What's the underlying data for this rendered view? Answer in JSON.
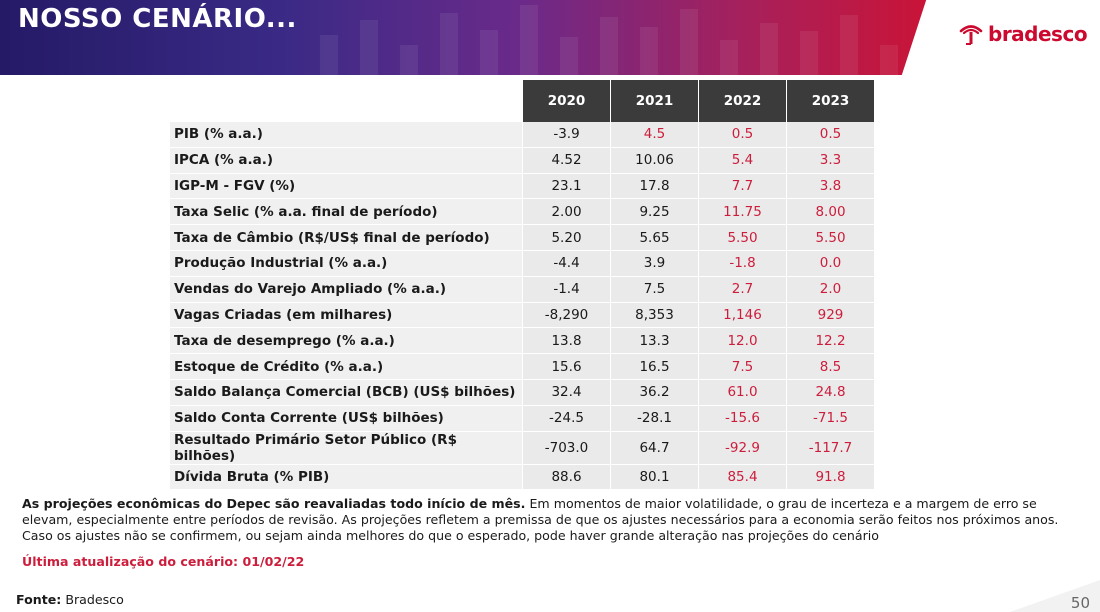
{
  "header": {
    "title": "NOSSO CENÁRIO...",
    "logo_text": "bradesco",
    "brand_color": "#cc092f"
  },
  "table": {
    "years": [
      "2020",
      "2021",
      "2022",
      "2023"
    ],
    "projection_color": "#cc1e3c",
    "rows": [
      {
        "label": "PIB (% a.a.)",
        "values": [
          "-3.9",
          "4.5",
          "0.5",
          "0.5"
        ],
        "proj_from": 1
      },
      {
        "label": "IPCA (% a.a.)",
        "values": [
          "4.52",
          "10.06",
          "5.4",
          "3.3"
        ],
        "proj_from": 2
      },
      {
        "label": "IGP-M - FGV (%)",
        "values": [
          "23.1",
          "17.8",
          "7.7",
          "3.8"
        ],
        "proj_from": 2
      },
      {
        "label": "Taxa Selic (% a.a. final de período)",
        "values": [
          "2.00",
          "9.25",
          "11.75",
          "8.00"
        ],
        "proj_from": 2
      },
      {
        "label": "Taxa de Câmbio (R$/US$ final de período)",
        "values": [
          "5.20",
          "5.65",
          "5.50",
          "5.50"
        ],
        "proj_from": 2
      },
      {
        "label": "Produção Industrial (% a.a.)",
        "values": [
          "-4.4",
          "3.9",
          "-1.8",
          "0.0"
        ],
        "proj_from": 2
      },
      {
        "label": "Vendas do Varejo Ampliado (% a.a.)",
        "values": [
          "-1.4",
          "7.5",
          "2.7",
          "2.0"
        ],
        "proj_from": 2
      },
      {
        "label": "Vagas Criadas (em milhares)",
        "values": [
          "-8,290",
          "8,353",
          "1,146",
          "929"
        ],
        "proj_from": 2
      },
      {
        "label": "Taxa de desemprego (% a.a.)",
        "values": [
          "13.8",
          "13.3",
          "12.0",
          "12.2"
        ],
        "proj_from": 2
      },
      {
        "label": "Estoque de Crédito (% a.a.)",
        "values": [
          "15.6",
          "16.5",
          "7.5",
          "8.5"
        ],
        "proj_from": 2
      },
      {
        "label": "Saldo Balança Comercial (BCB) (US$ bilhões)",
        "values": [
          "32.4",
          "36.2",
          "61.0",
          "24.8"
        ],
        "proj_from": 2
      },
      {
        "label": "Saldo Conta Corrente (US$ bilhões)",
        "values": [
          "-24.5",
          "-28.1",
          "-15.6",
          "-71.5"
        ],
        "proj_from": 2
      },
      {
        "label": "Resultado Primário Setor Público (R$ bilhões)",
        "values": [
          "-703.0",
          "64.7",
          "-92.9",
          "-117.7"
        ],
        "proj_from": 2
      },
      {
        "label": "Dívida Bruta (% PIB)",
        "values": [
          "88.6",
          "80.1",
          "85.4",
          "91.8"
        ],
        "proj_from": 2
      }
    ]
  },
  "footnote": {
    "bold_lead": "As projeções econômicas do Depec são reavaliadas todo início de mês.",
    "body": " Em momentos de maior volatilidade, o grau de incerteza e a margem de erro se elevam, especialmente entre períodos de revisão. As projeções refletem a premissa de que os ajustes necessários para a economia serão feitos nos próximos anos. Caso os ajustes não se confirmem, ou sejam ainda melhores do que o esperado, pode haver grande alteração nas projeções do cenário",
    "updated": "Última atualização do cenário: 01/02/22"
  },
  "source": {
    "label": "Fonte:",
    "value": " Bradesco"
  },
  "page_number": "50"
}
